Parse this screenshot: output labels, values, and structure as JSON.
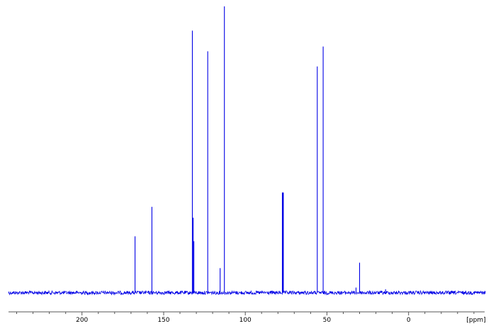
{
  "chart_data": {
    "type": "line",
    "title": "",
    "xlabel": "",
    "ylabel": "",
    "x_unit_label": "[ppm]",
    "x_reversed": true,
    "xlim": [
      245,
      -47
    ],
    "ylim": [
      -0.02,
      1.0
    ],
    "tick_values": [
      200,
      150,
      100,
      50,
      0
    ],
    "tick_labels": [
      "200",
      "150",
      "100",
      "50",
      "0"
    ],
    "grid": false,
    "legend": "none",
    "line_color": "#0000e6",
    "peaks": [
      {
        "ppm": 167.5,
        "height": 0.197
      },
      {
        "ppm": 157.2,
        "height": 0.3
      },
      {
        "ppm": 132.4,
        "height": 0.915
      },
      {
        "ppm": 131.9,
        "height": 0.262
      },
      {
        "ppm": 131.5,
        "height": 0.18
      },
      {
        "ppm": 123.0,
        "height": 0.843
      },
      {
        "ppm": 115.4,
        "height": 0.086
      },
      {
        "ppm": 112.8,
        "height": 1.0
      },
      {
        "ppm": 77.3,
        "height": 0.35
      },
      {
        "ppm": 77.0,
        "height": 0.35
      },
      {
        "ppm": 76.7,
        "height": 0.35
      },
      {
        "ppm": 55.9,
        "height": 0.79
      },
      {
        "ppm": 52.3,
        "height": 0.86
      },
      {
        "ppm": 30.0,
        "height": 0.105
      },
      {
        "ppm": 32.2,
        "height": 0.018
      },
      {
        "ppm": 14.1,
        "height": 0.012
      }
    ]
  }
}
